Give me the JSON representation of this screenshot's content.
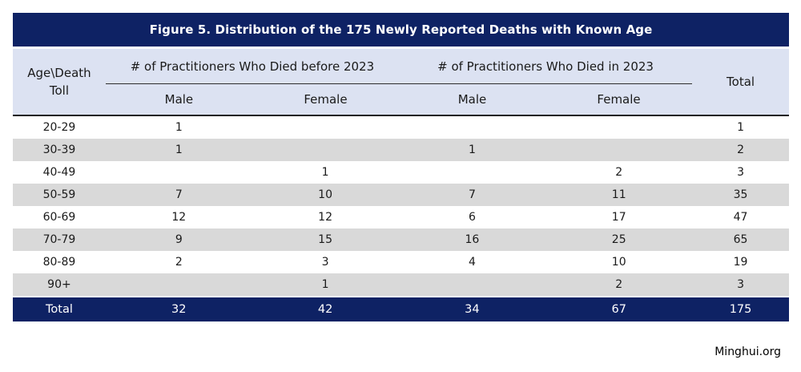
{
  "colors": {
    "navy": "#0e2264",
    "header_bg": "#dce2f2",
    "stripe": "#d9d9d9",
    "line": "#1a1a1a",
    "title_text": "#ffffff"
  },
  "chart_data": {
    "type": "table",
    "title": "Figure 5. Distribution of the 175 Newly Reported Deaths with Known Age",
    "corner_header": {
      "line1": "Age\\Death",
      "line2": "Toll"
    },
    "group_headers": [
      "# of Practitioners Who Died before 2023",
      "# of Practitioners Who Died in 2023"
    ],
    "sub_headers": [
      "Male",
      "Female",
      "Male",
      "Female"
    ],
    "total_header": "Total",
    "rows": [
      {
        "age": "20-29",
        "values": [
          1,
          null,
          null,
          null
        ],
        "total": 1
      },
      {
        "age": "30-39",
        "values": [
          1,
          null,
          1,
          null
        ],
        "total": 2
      },
      {
        "age": "40-49",
        "values": [
          null,
          1,
          null,
          2
        ],
        "total": 3
      },
      {
        "age": "50-59",
        "values": [
          7,
          10,
          7,
          11
        ],
        "total": 35
      },
      {
        "age": "60-69",
        "values": [
          12,
          12,
          6,
          17
        ],
        "total": 47
      },
      {
        "age": "70-79",
        "values": [
          9,
          15,
          16,
          25
        ],
        "total": 65
      },
      {
        "age": "80-89",
        "values": [
          2,
          3,
          4,
          10
        ],
        "total": 19
      },
      {
        "age": "90+",
        "values": [
          null,
          1,
          null,
          2
        ],
        "total": 3
      }
    ],
    "total_row": {
      "age": "Total",
      "values": [
        32,
        42,
        34,
        67
      ],
      "total": 175
    },
    "source": "Minghui.org"
  }
}
